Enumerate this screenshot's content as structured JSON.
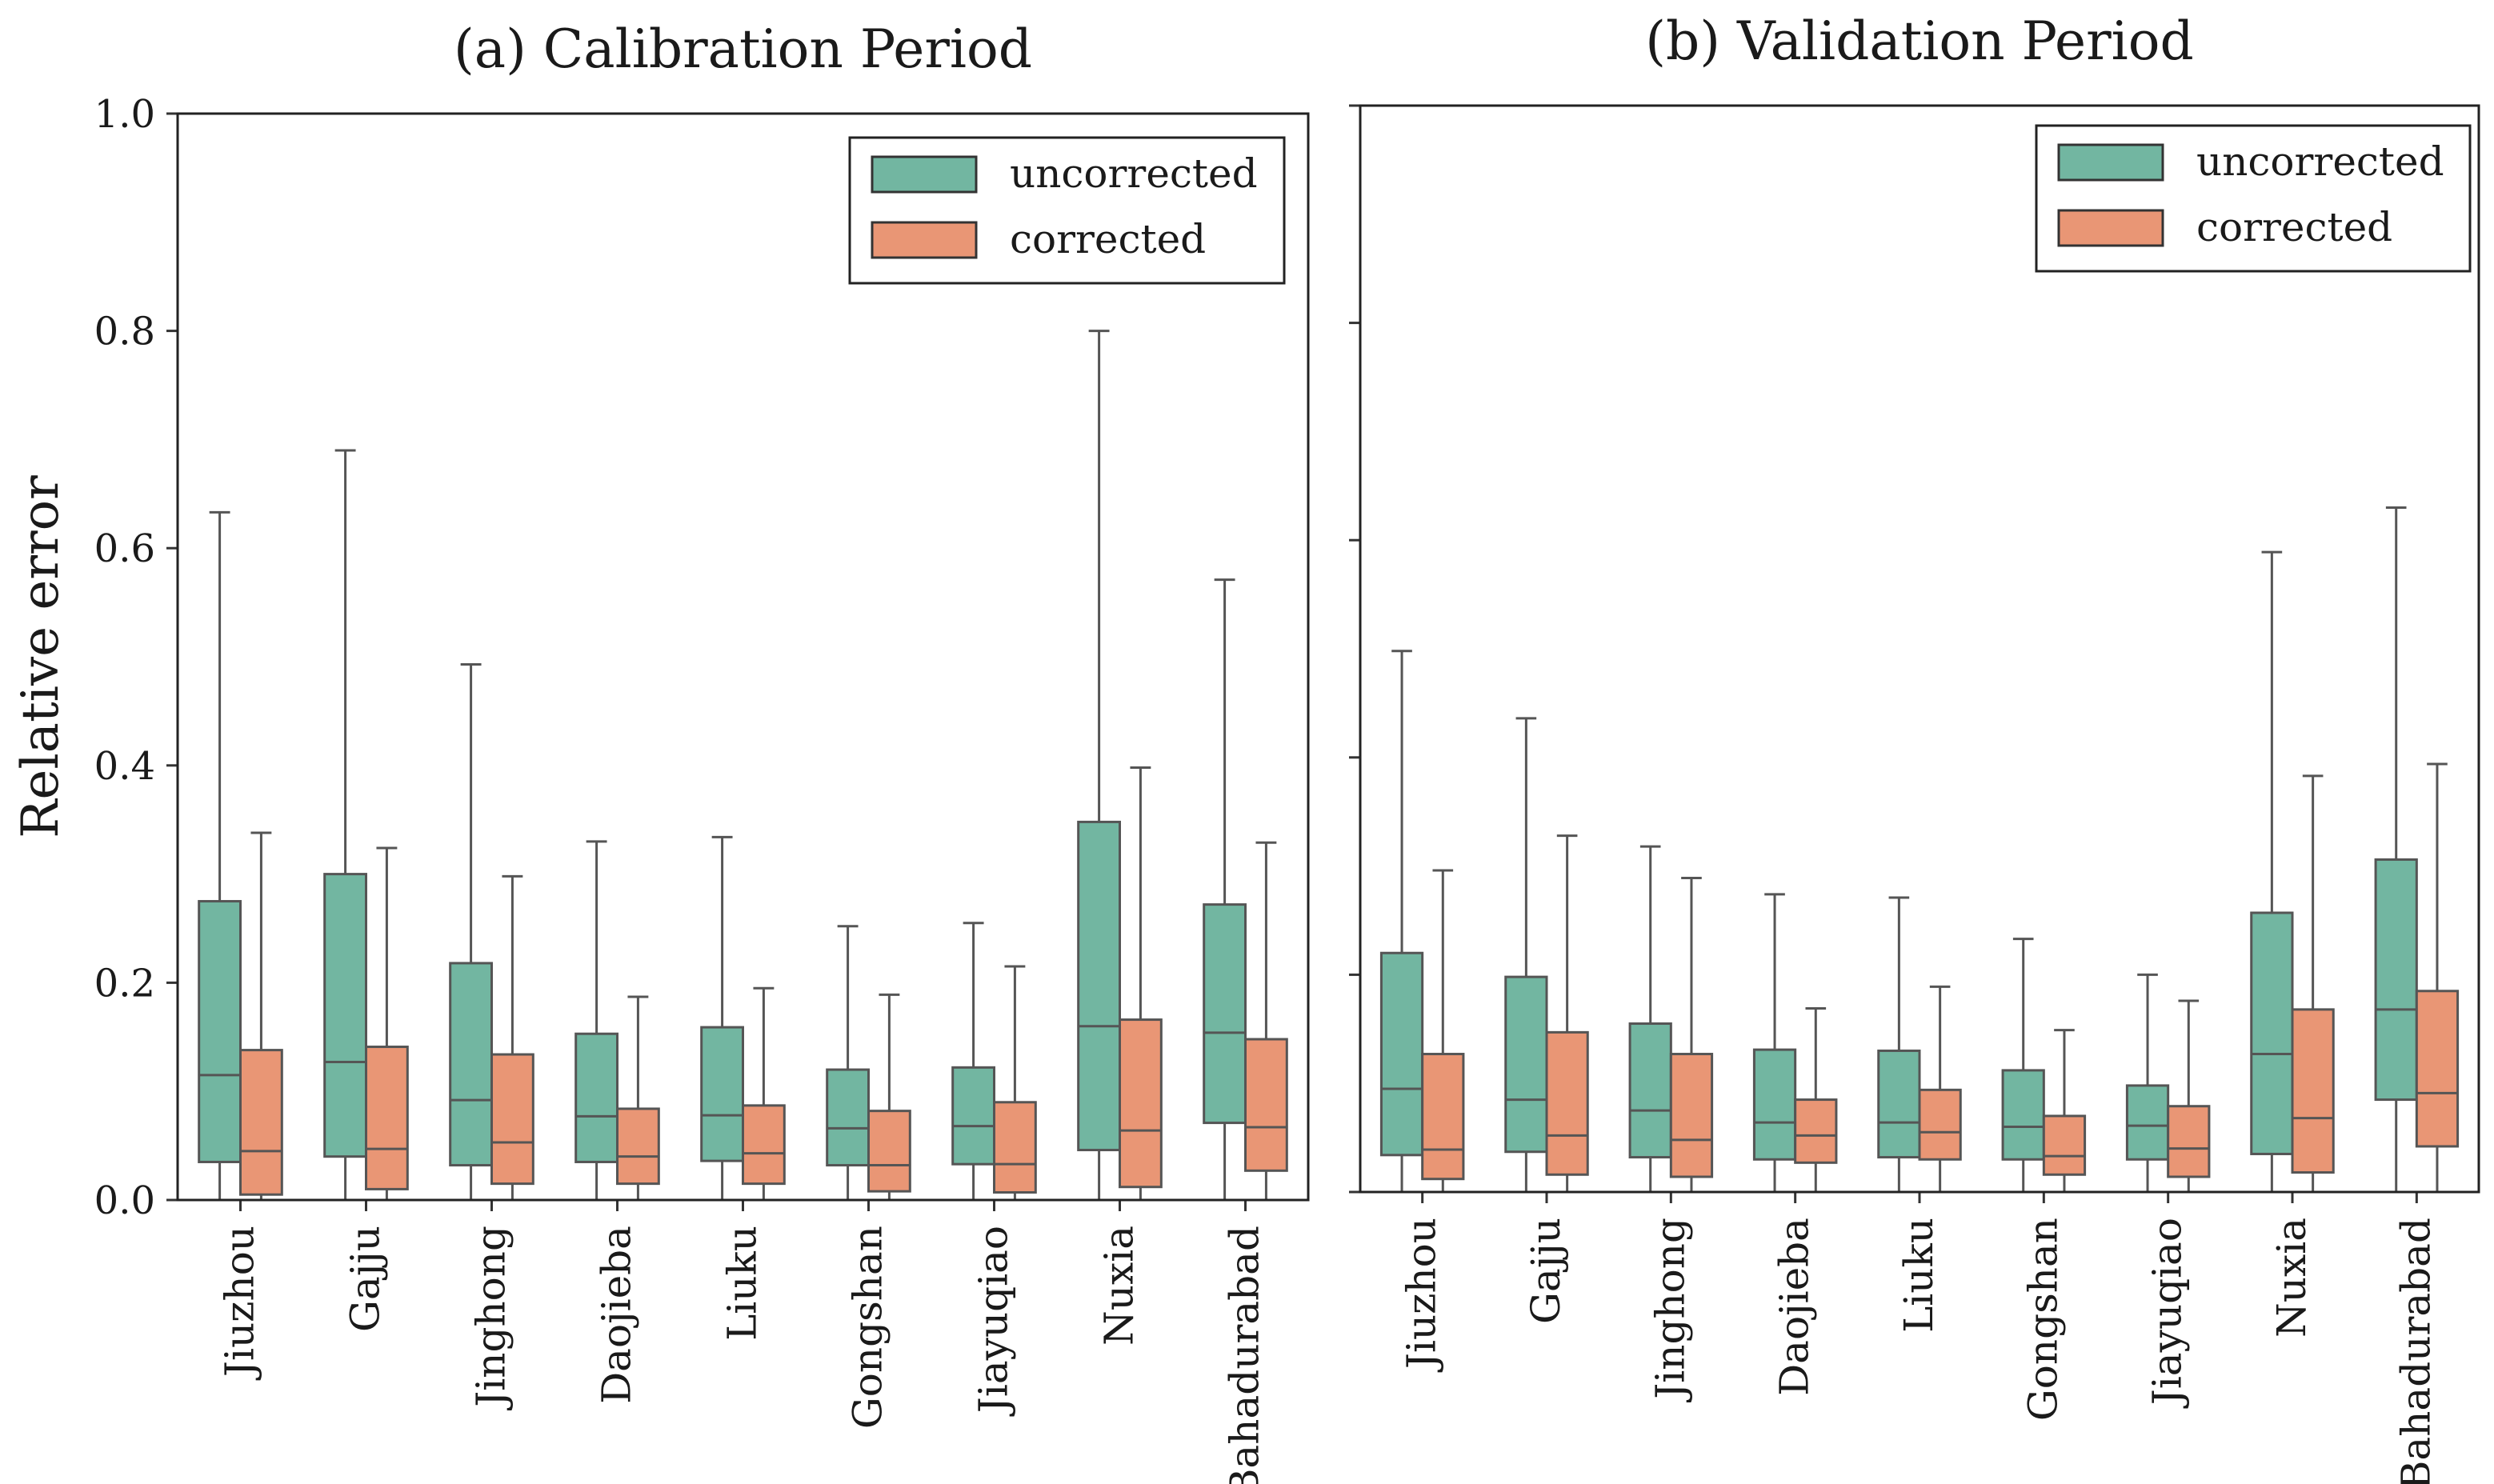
{
  "chart_data": [
    {
      "type": "box",
      "title": "(a) Calibration Period",
      "ylabel": "Relative error",
      "xlabel": "",
      "ylim": [
        0,
        1.0
      ],
      "yticks": [
        0.0,
        0.2,
        0.4,
        0.6,
        0.8,
        1.0
      ],
      "ytick_labels": [
        "0.0",
        "0.2",
        "0.4",
        "0.6",
        "0.8",
        "1.0"
      ],
      "legend_position": "top-right",
      "categories": [
        "Jiuzhou",
        "Gajju",
        "Jinghong",
        "Daojieba",
        "Liuku",
        "Gongshan",
        "Jiayuqiao",
        "Nuxia",
        "Bahadurabad"
      ],
      "series": [
        {
          "name": "uncorrected",
          "color": "#72b6a1",
          "boxes": [
            {
              "low": 0.0,
              "q1": 0.035,
              "median": 0.115,
              "q3": 0.275,
              "high": 0.633
            },
            {
              "low": 0.0,
              "q1": 0.04,
              "median": 0.127,
              "q3": 0.3,
              "high": 0.69
            },
            {
              "low": 0.0,
              "q1": 0.032,
              "median": 0.092,
              "q3": 0.218,
              "high": 0.493
            },
            {
              "low": 0.0,
              "q1": 0.035,
              "median": 0.077,
              "q3": 0.153,
              "high": 0.33
            },
            {
              "low": 0.0,
              "q1": 0.036,
              "median": 0.078,
              "q3": 0.159,
              "high": 0.334
            },
            {
              "low": 0.0,
              "q1": 0.032,
              "median": 0.066,
              "q3": 0.12,
              "high": 0.252
            },
            {
              "low": 0.0,
              "q1": 0.033,
              "median": 0.068,
              "q3": 0.122,
              "high": 0.255
            },
            {
              "low": 0.0,
              "q1": 0.046,
              "median": 0.16,
              "q3": 0.348,
              "high": 0.8
            },
            {
              "low": 0.0,
              "q1": 0.071,
              "median": 0.154,
              "q3": 0.272,
              "high": 0.571
            }
          ]
        },
        {
          "name": "corrected",
          "color": "#e99675",
          "boxes": [
            {
              "low": 0.0,
              "q1": 0.005,
              "median": 0.045,
              "q3": 0.138,
              "high": 0.338
            },
            {
              "low": 0.0,
              "q1": 0.01,
              "median": 0.047,
              "q3": 0.141,
              "high": 0.324
            },
            {
              "low": 0.0,
              "q1": 0.015,
              "median": 0.053,
              "q3": 0.134,
              "high": 0.298
            },
            {
              "low": 0.0,
              "q1": 0.015,
              "median": 0.04,
              "q3": 0.084,
              "high": 0.187
            },
            {
              "low": 0.0,
              "q1": 0.015,
              "median": 0.043,
              "q3": 0.087,
              "high": 0.195
            },
            {
              "low": 0.0,
              "q1": 0.008,
              "median": 0.032,
              "q3": 0.082,
              "high": 0.189
            },
            {
              "low": 0.0,
              "q1": 0.007,
              "median": 0.033,
              "q3": 0.09,
              "high": 0.215
            },
            {
              "low": 0.0,
              "q1": 0.012,
              "median": 0.064,
              "q3": 0.166,
              "high": 0.398
            },
            {
              "low": 0.0,
              "q1": 0.027,
              "median": 0.067,
              "q3": 0.148,
              "high": 0.329
            }
          ]
        }
      ]
    },
    {
      "type": "box",
      "title": "(b) Validation Period",
      "ylabel": "",
      "xlabel": "",
      "ylim": [
        0,
        1.0
      ],
      "yticks": [
        0.0,
        0.2,
        0.4,
        0.6,
        0.8,
        1.0
      ],
      "ytick_labels": [],
      "legend_position": "top-right",
      "categories": [
        "Jiuzhou",
        "Gajju",
        "Jinghong",
        "Daojieba",
        "Liuku",
        "Gongshan",
        "Jiayuqiao",
        "Nuxia",
        "Bahadurabad"
      ],
      "series": [
        {
          "name": "uncorrected",
          "color": "#72b6a1",
          "boxes": [
            {
              "low": 0.0,
              "q1": 0.034,
              "median": 0.095,
              "q3": 0.22,
              "high": 0.498
            },
            {
              "low": 0.0,
              "q1": 0.037,
              "median": 0.085,
              "q3": 0.198,
              "high": 0.436
            },
            {
              "low": 0.0,
              "q1": 0.032,
              "median": 0.075,
              "q3": 0.155,
              "high": 0.318
            },
            {
              "low": 0.0,
              "q1": 0.03,
              "median": 0.064,
              "q3": 0.131,
              "high": 0.274
            },
            {
              "low": 0.0,
              "q1": 0.032,
              "median": 0.064,
              "q3": 0.13,
              "high": 0.271
            },
            {
              "low": 0.0,
              "q1": 0.03,
              "median": 0.06,
              "q3": 0.112,
              "high": 0.233
            },
            {
              "low": 0.0,
              "q1": 0.03,
              "median": 0.061,
              "q3": 0.098,
              "high": 0.2
            },
            {
              "low": 0.0,
              "q1": 0.035,
              "median": 0.127,
              "q3": 0.257,
              "high": 0.589
            },
            {
              "low": 0.0,
              "q1": 0.085,
              "median": 0.168,
              "q3": 0.306,
              "high": 0.63
            }
          ]
        },
        {
          "name": "corrected",
          "color": "#e99675",
          "boxes": [
            {
              "low": 0.0,
              "q1": 0.012,
              "median": 0.039,
              "q3": 0.127,
              "high": 0.296
            },
            {
              "low": 0.0,
              "q1": 0.016,
              "median": 0.052,
              "q3": 0.147,
              "high": 0.328
            },
            {
              "low": 0.0,
              "q1": 0.014,
              "median": 0.048,
              "q3": 0.127,
              "high": 0.289
            },
            {
              "low": 0.0,
              "q1": 0.027,
              "median": 0.052,
              "q3": 0.085,
              "high": 0.169
            },
            {
              "low": 0.0,
              "q1": 0.03,
              "median": 0.055,
              "q3": 0.094,
              "high": 0.189
            },
            {
              "low": 0.0,
              "q1": 0.016,
              "median": 0.033,
              "q3": 0.07,
              "high": 0.149
            },
            {
              "low": 0.0,
              "q1": 0.014,
              "median": 0.04,
              "q3": 0.079,
              "high": 0.176
            },
            {
              "low": 0.0,
              "q1": 0.018,
              "median": 0.068,
              "q3": 0.168,
              "high": 0.383
            },
            {
              "low": 0.0,
              "q1": 0.042,
              "median": 0.091,
              "q3": 0.185,
              "high": 0.394
            }
          ]
        }
      ]
    }
  ]
}
